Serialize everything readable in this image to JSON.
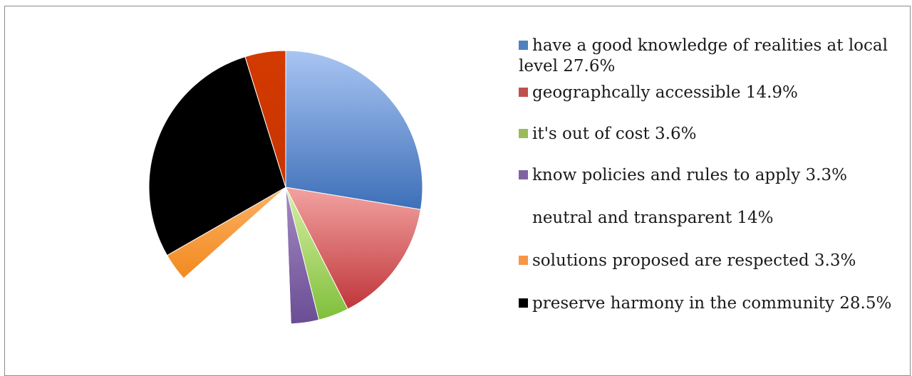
{
  "chart_data": {
    "type": "pie",
    "slices": [
      {
        "label": "have a good knowledge of realities at local level 27.6%",
        "value": 27.6,
        "color_light": "#a9c5f2",
        "color_dark": "#3d6fb8",
        "swatch": "#4f81bd"
      },
      {
        "label": "geographcally accessible 14.9%",
        "value": 14.9,
        "color_light": "#f2a3a1",
        "color_dark": "#c0363a",
        "swatch": "#c0504d"
      },
      {
        "label": "it's out of cost 3.6%",
        "value": 3.6,
        "color_light": "#d8f0a6",
        "color_dark": "#7fbf3a",
        "swatch": "#9bbb59"
      },
      {
        "label": "know policies and rules to apply 3.3%",
        "value": 3.3,
        "color_light": "#a58bc4",
        "color_dark": "#6a4d94",
        "swatch": "#8064a2"
      },
      {
        "label": "neutral and transparent 14%",
        "value": 14,
        "color_light": "#ffffff",
        "color_dark": "#ffffff",
        "swatch": "#ffffff"
      },
      {
        "label": "solutions proposed are respected 3.3%",
        "value": 3.3,
        "color_light": "#fbb066",
        "color_dark": "#f28a1e",
        "swatch": "#f79646"
      },
      {
        "label": "preserve harmony in the community 28.5%",
        "value": 28.5,
        "color_light": "#000000",
        "color_dark": "#000000",
        "swatch": "#000000"
      },
      {
        "label": "",
        "value": 4.8,
        "color_light": "#d23a00",
        "color_dark": "#c93400",
        "swatch": "#d23a00"
      }
    ],
    "legend_position": "right"
  }
}
